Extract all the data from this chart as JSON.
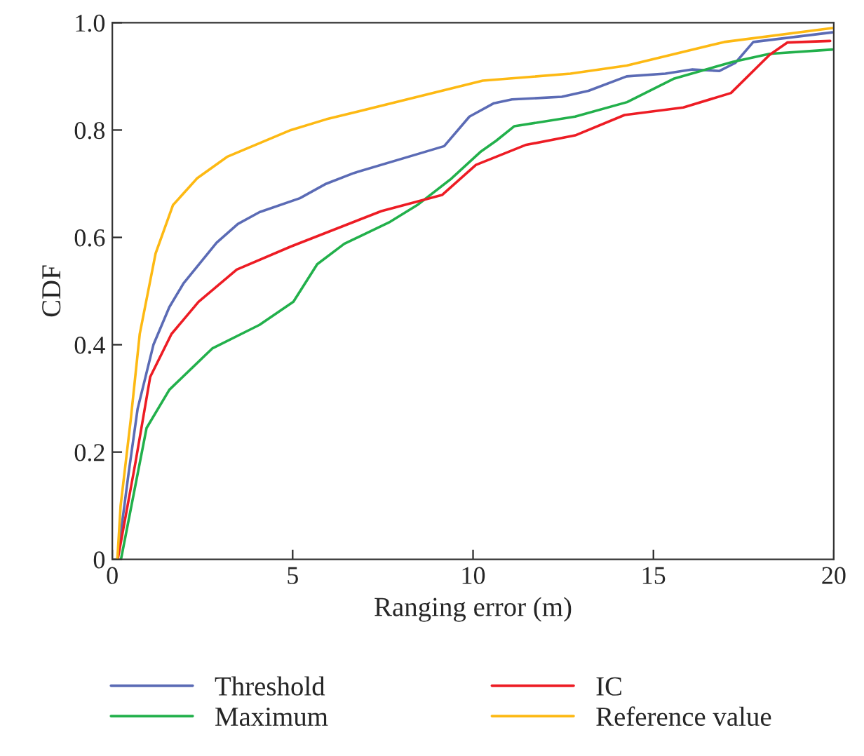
{
  "chart_data": {
    "type": "line",
    "xlabel": "Ranging error (m)",
    "ylabel": "CDF",
    "xlim": [
      0,
      20
    ],
    "xticks": [
      0,
      5,
      10,
      15,
      20
    ],
    "ylim": [
      0,
      1.0
    ],
    "yticks": [
      0,
      {
        "value": 0.2,
        "label": "0.2"
      },
      {
        "value": 0.4,
        "label": "0.4"
      },
      {
        "value": 0.6,
        "label": "0.6"
      },
      {
        "value": 0.8,
        "label": "0.8"
      },
      {
        "value": 1.0,
        "label": "1.0"
      }
    ],
    "grid": false,
    "legend": "bottom",
    "line_style": "solid",
    "marker": "none",
    "series": [
      {
        "name": "Threshold",
        "color": "#5b6bb5",
        "x": [
          0.14,
          0.45,
          0.7,
          1.14,
          1.58,
          1.98,
          2.89,
          3.48,
          4.08,
          5.2,
          5.93,
          6.7,
          8.45,
          9.2,
          9.9,
          10.58,
          11.08,
          12.46,
          13.2,
          14.26,
          15.33,
          16.08,
          16.83,
          17.27,
          17.77,
          19.96
        ],
        "values": [
          0,
          0.16,
          0.28,
          0.4,
          0.47,
          0.515,
          0.59,
          0.625,
          0.647,
          0.673,
          0.7,
          0.72,
          0.755,
          0.77,
          0.825,
          0.85,
          0.857,
          0.862,
          0.873,
          0.9,
          0.905,
          0.913,
          0.91,
          0.925,
          0.964,
          0.982
        ]
      },
      {
        "name": "Maximum",
        "color": "#22b04b",
        "x": [
          0.24,
          0.95,
          1.58,
          2.77,
          4.08,
          5.02,
          5.68,
          6.43,
          7.7,
          8.45,
          9.39,
          10.2,
          10.64,
          11.14,
          12.83,
          14.27,
          15.58,
          17.2,
          18.22,
          19.96
        ],
        "values": [
          0,
          0.245,
          0.316,
          0.393,
          0.437,
          0.48,
          0.55,
          0.588,
          0.629,
          0.66,
          0.709,
          0.759,
          0.78,
          0.807,
          0.825,
          0.852,
          0.896,
          0.927,
          0.942,
          0.95
        ]
      },
      {
        "name": "IC",
        "color": "#ed1c24",
        "x": [
          0.15,
          0.64,
          1.05,
          1.64,
          2.39,
          3.45,
          4.95,
          7.46,
          9.14,
          10.08,
          11.45,
          12.83,
          14.2,
          15.83,
          17.15,
          18.22,
          18.71,
          19.9
        ],
        "values": [
          0,
          0.18,
          0.34,
          0.42,
          0.48,
          0.54,
          0.583,
          0.649,
          0.679,
          0.735,
          0.772,
          0.79,
          0.828,
          0.842,
          0.869,
          0.94,
          0.963,
          0.966
        ]
      },
      {
        "name": "Reference value",
        "color": "#fdb913",
        "x": [
          0.14,
          0.23,
          0.51,
          0.76,
          1.2,
          1.68,
          2.35,
          3.18,
          4.95,
          5.93,
          10.27,
          12.7,
          14.26,
          16.96,
          19.96
        ],
        "values": [
          0,
          0.1,
          0.26,
          0.42,
          0.57,
          0.66,
          0.71,
          0.75,
          0.8,
          0.82,
          0.892,
          0.905,
          0.92,
          0.964,
          0.99
        ]
      }
    ]
  }
}
